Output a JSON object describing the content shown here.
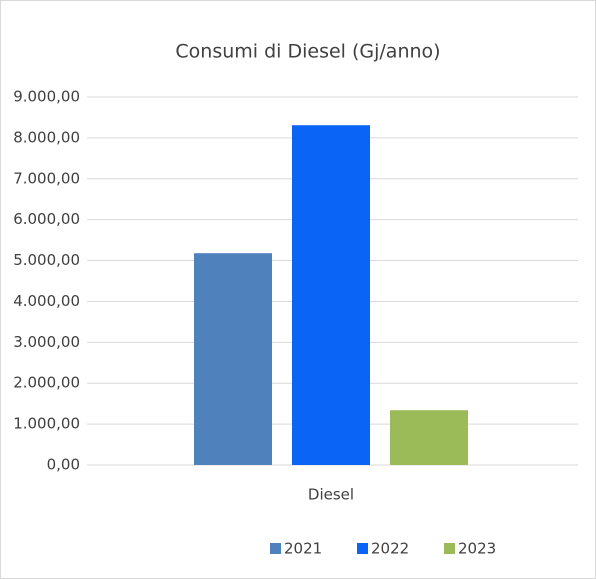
{
  "chart_data": {
    "type": "bar",
    "title": "Consumi di Diesel (Gj/anno)",
    "categories": [
      "Diesel"
    ],
    "series": [
      {
        "name": "2021",
        "color": "#4f81bd",
        "values": [
          5180
        ]
      },
      {
        "name": "2022",
        "color": "#0a64f5",
        "values": [
          8310
        ]
      },
      {
        "name": "2023",
        "color": "#9bbb59",
        "values": [
          1340
        ]
      }
    ],
    "ylim": [
      0,
      9000
    ],
    "yticks": [
      {
        "value": 0,
        "label": "0,00"
      },
      {
        "value": 1000,
        "label": "1.000,00"
      },
      {
        "value": 2000,
        "label": "2.000,00"
      },
      {
        "value": 3000,
        "label": "3.000,00"
      },
      {
        "value": 4000,
        "label": "4.000,00"
      },
      {
        "value": 5000,
        "label": "5.000,00"
      },
      {
        "value": 6000,
        "label": "6.000,00"
      },
      {
        "value": 7000,
        "label": "7.000,00"
      },
      {
        "value": 8000,
        "label": "8.000,00"
      },
      {
        "value": 9000,
        "label": "9.000,00"
      }
    ],
    "grid": true,
    "legend": "bottom"
  }
}
